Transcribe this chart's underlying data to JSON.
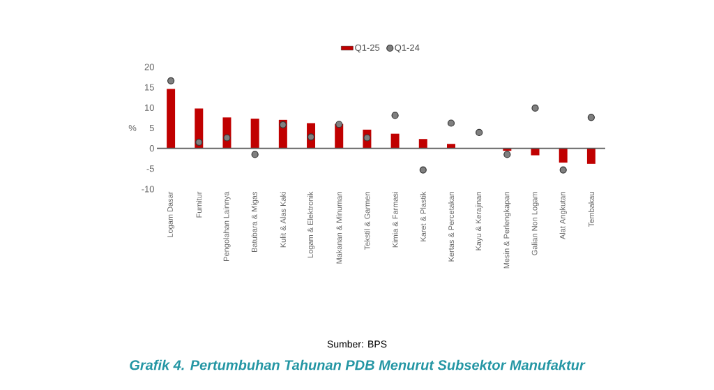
{
  "chart_data": {
    "type": "bar",
    "title": "Grafik 4. Pertumbuhan Tahunan PDB Menurut Subsektor Manufaktur",
    "ylabel": "%",
    "annotations": [
      "Sumber: BPS"
    ],
    "categories": [
      "Logam Dasar",
      "Furnitur",
      "Pengolahan Lainnya",
      "Batubara & Migas",
      "Kulit & Alas Kaki",
      "Logam & Elektronik",
      "Makanan & Minuman",
      "Tekstil & Garmen",
      "Kimia & Farmasi",
      "Karet & Plastik",
      "Kertas & Percetakan",
      "Kayu & Kerajinan",
      "Mesin & Perlengkapan",
      "Galian Non Logam",
      "Alat Angkutan",
      "Tembakau"
    ],
    "series": [
      {
        "name": "Q1-25",
        "color": "#c00000",
        "values": [
          14.6,
          9.8,
          7.6,
          7.3,
          7.0,
          6.2,
          6.0,
          4.6,
          3.6,
          2.3,
          1.1,
          0,
          -0.6,
          -1.7,
          -3.5,
          -3.8
        ]
      },
      {
        "name": "Q1-24",
        "type": "scatter",
        "marker": "circle",
        "color": "#7f7f7f",
        "values": [
          16.6,
          1.5,
          2.6,
          -1.5,
          5.8,
          2.8,
          5.9,
          2.6,
          8.1,
          -5.3,
          6.2,
          3.9,
          -1.5,
          9.9,
          -5.3,
          7.6
        ]
      }
    ],
    "ylim": [
      -10,
      20
    ],
    "yticks": [
      -10,
      -5,
      0,
      5,
      10,
      15,
      20
    ],
    "legend": "top"
  }
}
